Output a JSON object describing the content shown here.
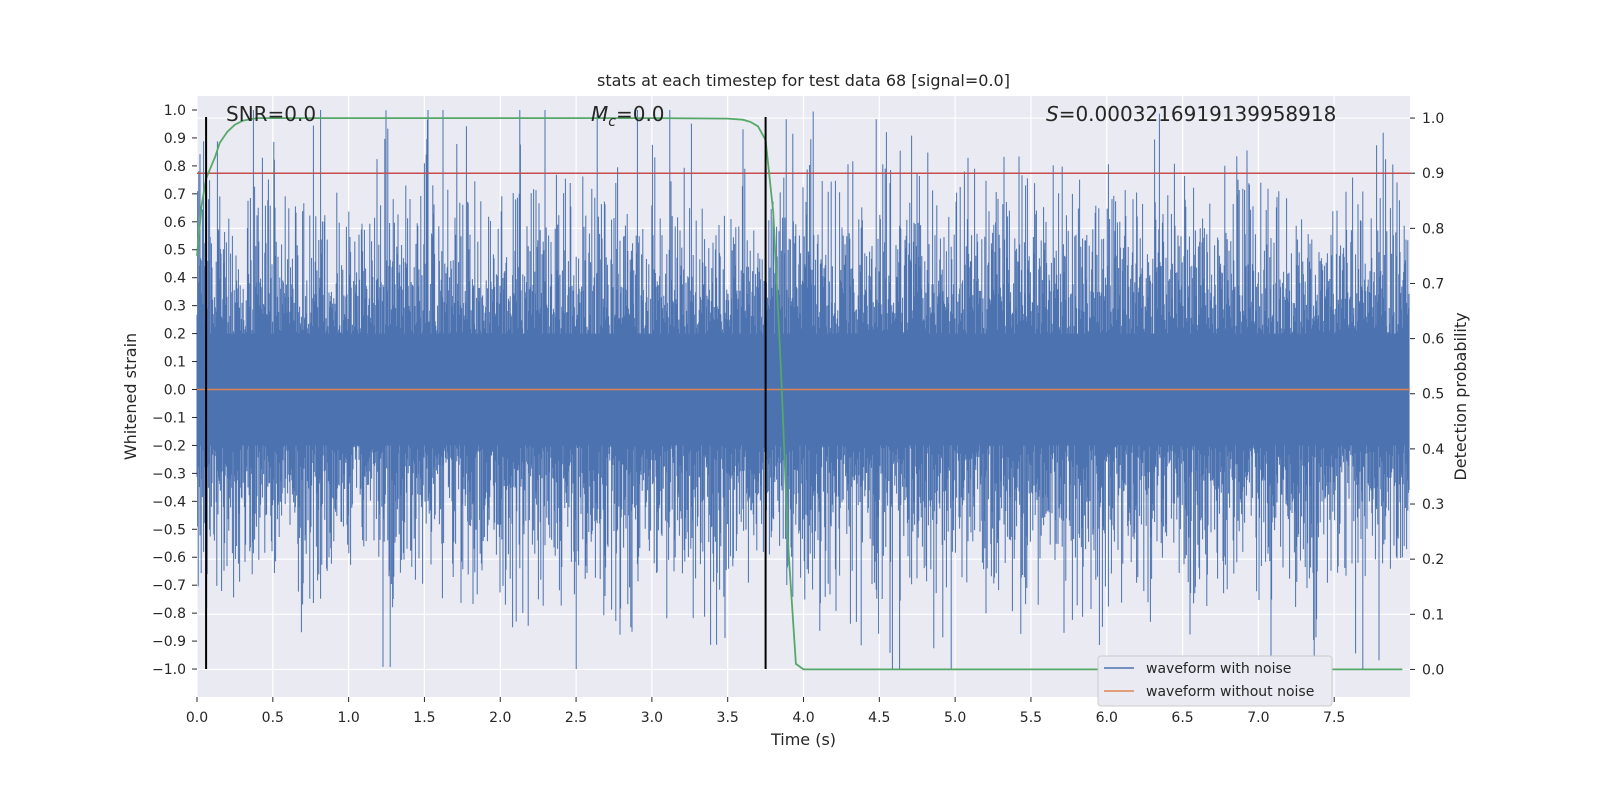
{
  "chart_data": {
    "type": "line",
    "title": "stats at each timestep for test data 68 [signal=0.0]",
    "xlabel": "Time (s)",
    "ylabel": "Whitened strain",
    "y2label": "Detection probability",
    "xlim": [
      0.0,
      8.0
    ],
    "ylim": [
      -1.1,
      1.05
    ],
    "y2lim": [
      -0.05,
      1.04
    ],
    "x_ticks": [
      "0.0",
      "0.5",
      "1.0",
      "1.5",
      "2.0",
      "2.5",
      "3.0",
      "3.5",
      "4.0",
      "4.5",
      "5.0",
      "5.5",
      "6.0",
      "6.5",
      "7.0",
      "7.5"
    ],
    "y_ticks": [
      "1.0",
      "0.9",
      "0.8",
      "0.7",
      "0.6",
      "0.5",
      "0.4",
      "0.3",
      "0.2",
      "0.1",
      "0.0",
      "−0.1",
      "−0.2",
      "−0.3",
      "−0.4",
      "−0.5",
      "−0.6",
      "−0.7",
      "−0.8",
      "−0.9",
      "−1.0"
    ],
    "y2_ticks": [
      "1.0",
      "0.9",
      "0.8",
      "0.7",
      "0.6",
      "0.5",
      "0.4",
      "0.3",
      "0.2",
      "0.1",
      "0.0"
    ],
    "grid": true,
    "legend_position": "lower-right",
    "annotations": {
      "snr": "SNR=0.0",
      "mc": "M_c=0.0",
      "s": "S=0.0003216919139958918"
    },
    "vertical_lines_x": [
      0.06,
      3.75
    ],
    "threshold_y2": 0.9,
    "series": [
      {
        "name": "waveform with noise",
        "color": "#4c72b0",
        "description_kind": "noise",
        "amplitude_band": [
          -1.0,
          1.0
        ]
      },
      {
        "name": "waveform without noise",
        "color": "#dd8452",
        "x": [
          0.0,
          8.0
        ],
        "y": [
          0.0,
          0.0
        ]
      },
      {
        "role": "detection-probability",
        "color": "#55a868",
        "x": [
          0.0,
          0.03,
          0.06,
          0.09,
          0.12,
          0.15,
          0.2,
          0.25,
          0.3,
          0.35,
          0.4,
          0.5,
          1.0,
          2.0,
          3.0,
          3.5,
          3.6,
          3.65,
          3.7,
          3.75,
          3.8,
          3.85,
          3.9,
          3.95,
          4.0,
          4.5,
          5.0,
          6.0,
          7.0,
          7.95
        ],
        "y": [
          0.75,
          0.84,
          0.89,
          0.91,
          0.93,
          0.955,
          0.975,
          0.988,
          0.995,
          0.998,
          1.0,
          1.0,
          1.0,
          1.0,
          1.0,
          0.999,
          0.997,
          0.993,
          0.985,
          0.96,
          0.83,
          0.55,
          0.22,
          0.01,
          0.0,
          0.0,
          0.0,
          0.0,
          0.0,
          0.0
        ]
      },
      {
        "role": "threshold",
        "color": "#c44e52",
        "x": [
          0.0,
          8.0
        ],
        "y2": [
          0.9,
          0.9
        ]
      }
    ]
  }
}
